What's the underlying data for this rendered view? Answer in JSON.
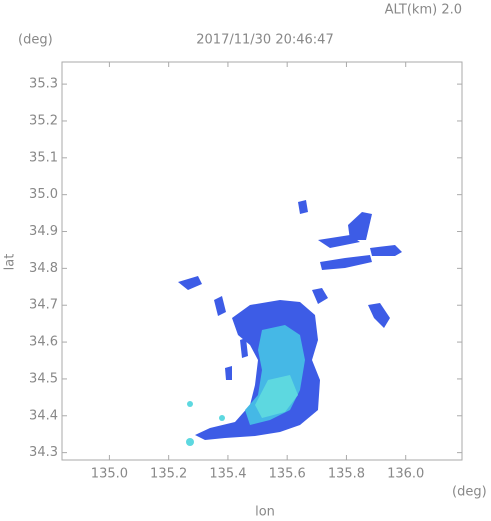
{
  "chart_data": {
    "type": "map",
    "title": "2017/11/30 20:46:47",
    "altitude_label": "ALT(km) 2.0",
    "y_unit": "(deg)",
    "x_unit": "(deg)",
    "x_label": "lon",
    "y_label": "lat",
    "xlim": [
      134.84,
      136.19
    ],
    "ylim": [
      34.28,
      35.36
    ],
    "xticks": [
      {
        "value": 135.0,
        "label": "135.0"
      },
      135.2,
      135.4,
      135.6,
      135.8,
      {
        "value": 136.0,
        "label": "136.0"
      }
    ],
    "yticks": [
      34.3,
      34.4,
      34.5,
      34.6,
      34.7,
      34.8,
      34.9,
      {
        "value": 35.0,
        "label": "35.0"
      },
      35.1,
      35.2,
      35.3
    ]
  }
}
